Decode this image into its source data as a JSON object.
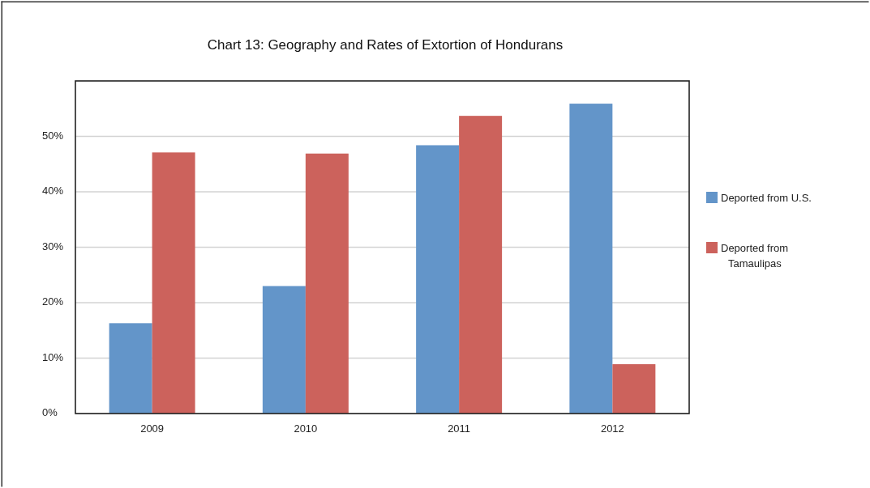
{
  "chart_data": {
    "type": "bar",
    "title": "Chart 13: Geography and Rates of Extortion of Hondurans",
    "categories": [
      "2009",
      "2010",
      "2011",
      "2012"
    ],
    "series": [
      {
        "name": "Deported from U.S.",
        "color": "#6395c9",
        "values": [
          16.3,
          23.0,
          48.4,
          55.9
        ]
      },
      {
        "name": "Deported from Tamaulipas",
        "color": "#cc625c",
        "values": [
          47.1,
          46.9,
          53.7,
          8.9
        ]
      }
    ],
    "ylim": [
      0,
      60
    ],
    "yticks": [
      {
        "value": 0,
        "label": "0%"
      },
      {
        "value": 10,
        "label": "10%"
      },
      {
        "value": 20,
        "label": "20%"
      },
      {
        "value": 30,
        "label": "30%"
      },
      {
        "value": 40,
        "label": "40%"
      },
      {
        "value": 50,
        "label": "50%"
      }
    ],
    "grid": "y",
    "legend": "right"
  }
}
